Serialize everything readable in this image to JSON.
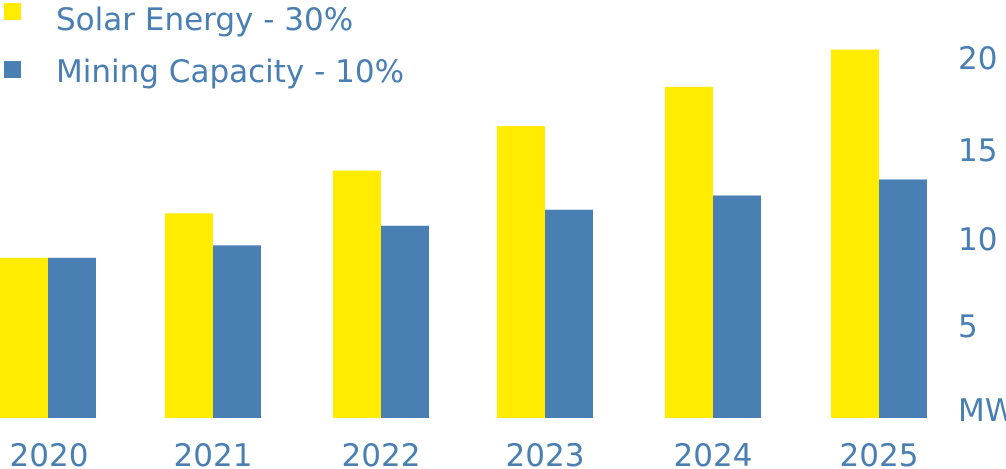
{
  "chart_data": {
    "type": "bar",
    "categories": [
      "2020",
      "2021",
      "2022",
      "2023",
      "2024",
      "2025"
    ],
    "series": [
      {
        "name": "Solar Energy - 30%",
        "values": [
          9.0,
          11.5,
          13.9,
          16.4,
          18.6,
          20.7
        ],
        "color": "#ffec00"
      },
      {
        "name": "Mining Capacity - 10%",
        "values": [
          9.0,
          9.7,
          10.8,
          11.7,
          12.5,
          13.4
        ],
        "color": "#4a7fb4"
      }
    ],
    "ylabel": "MW",
    "yticks": [
      "5",
      "10",
      "15",
      "20"
    ],
    "ylim": [
      0,
      22
    ],
    "grid": false,
    "legend": "top-left",
    "text_color": "#4a7fb4"
  }
}
